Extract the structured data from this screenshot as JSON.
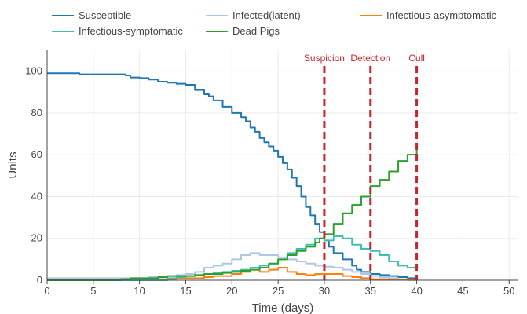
{
  "chart_data": {
    "type": "line",
    "title": "",
    "xlabel": "Time (days)",
    "ylabel": "Units",
    "xlim": [
      0,
      51
    ],
    "ylim": [
      0,
      110
    ],
    "xticks": [
      0,
      5,
      10,
      15,
      20,
      25,
      30,
      35,
      40,
      45,
      50
    ],
    "yticks": [
      0,
      20,
      40,
      60,
      80,
      100
    ],
    "grid": true,
    "legend_position": "top",
    "series": [
      {
        "name": "Susceptible",
        "color": "#1f77b4",
        "x": [
          0,
          3,
          3.5,
          7,
          8.5,
          9,
          10,
          11,
          12,
          13,
          14,
          15,
          16,
          17,
          17.5,
          18,
          19,
          20,
          21,
          21.5,
          22,
          22.5,
          23,
          23.5,
          24,
          24.5,
          25,
          25.5,
          26,
          26.5,
          27,
          27.5,
          28,
          28.5,
          29,
          29.5,
          30,
          30.5,
          31,
          32,
          33,
          33.5,
          34,
          35,
          36,
          37,
          38,
          39,
          40
        ],
        "values": [
          99,
          99,
          98.5,
          98.5,
          98,
          97,
          96.7,
          96,
          95,
          94.5,
          94,
          93.5,
          91,
          89,
          88,
          86,
          83,
          80,
          78,
          76,
          73,
          71,
          68,
          66,
          64,
          62,
          59,
          56,
          53,
          49,
          45,
          40,
          35,
          31,
          27,
          23,
          19,
          16,
          13,
          10,
          7,
          5,
          4,
          3,
          2.5,
          2,
          1.5,
          1,
          0.5
        ]
      },
      {
        "name": "Infected(latent)",
        "color": "#aec7e8",
        "x": [
          0,
          8,
          9,
          10,
          11,
          12,
          13,
          14,
          15,
          16,
          17,
          18,
          19,
          20,
          21,
          22,
          23,
          24,
          25,
          26,
          27,
          28,
          29,
          30,
          31,
          32,
          33,
          34,
          35,
          36,
          37,
          38,
          39,
          40
        ],
        "values": [
          1,
          1,
          1,
          1,
          1.5,
          1.5,
          2,
          2.5,
          3,
          4,
          6,
          7,
          8,
          10,
          12,
          13,
          12,
          12,
          11,
          10,
          9,
          8,
          7,
          6.5,
          6,
          5,
          4,
          3,
          2,
          1.5,
          1,
          0.5,
          0.3,
          0
        ]
      },
      {
        "name": "Infectious-asymptomatic",
        "color": "#ff7f0e",
        "x": [
          0,
          10,
          11,
          12,
          13,
          14,
          15,
          16,
          17,
          18,
          19,
          20,
          21,
          22,
          23,
          24,
          25,
          26,
          27,
          28,
          29,
          30,
          31,
          32,
          33,
          34,
          35,
          36,
          37,
          38,
          39,
          40
        ],
        "values": [
          0,
          0,
          0.3,
          0.5,
          0.5,
          1,
          1,
          1,
          1.5,
          2,
          2,
          3,
          4,
          5,
          4,
          5,
          6,
          4,
          3,
          2.5,
          3,
          3,
          3,
          2,
          1.5,
          1,
          0.5,
          0.5,
          0.3,
          0.2,
          0.1,
          0
        ]
      },
      {
        "name": "Infectious-symptomatic",
        "color": "#40bfae",
        "x": [
          0,
          12,
          13,
          14,
          15,
          16,
          17,
          18,
          19,
          20,
          21,
          22,
          23,
          24,
          25,
          26,
          27,
          28,
          29,
          30,
          31,
          32,
          33,
          34,
          35,
          36,
          37,
          38,
          39,
          40
        ],
        "values": [
          0,
          0,
          1,
          1.5,
          2,
          2.5,
          3,
          3.5,
          4,
          4.5,
          5,
          6,
          7,
          8,
          10,
          13,
          15,
          17,
          20,
          19,
          21,
          20,
          17,
          15,
          14,
          12,
          9,
          7,
          6,
          5
        ]
      },
      {
        "name": "Dead Pigs",
        "color": "#2ca02c",
        "x": [
          0,
          7,
          8,
          9,
          10,
          11,
          12,
          13,
          14,
          15,
          16,
          17,
          18,
          19,
          20,
          21,
          22,
          23,
          24,
          25,
          26,
          27,
          28,
          29,
          29.5,
          30,
          31,
          32,
          33,
          34,
          35,
          36,
          37,
          38,
          39,
          40
        ],
        "values": [
          0,
          0,
          0.5,
          1,
          1,
          1,
          1.5,
          2,
          2,
          2,
          2.5,
          3,
          3,
          3.5,
          4,
          4.5,
          5,
          6,
          8,
          10,
          12,
          14,
          16,
          18,
          20,
          22,
          27,
          32,
          36,
          40,
          45,
          48,
          52,
          57,
          60,
          64
        ]
      }
    ],
    "events": [
      {
        "label": "Suspicion",
        "x": 30,
        "color": "#c1272d"
      },
      {
        "label": "Detection",
        "x": 35,
        "color": "#c1272d"
      },
      {
        "label": "Cull",
        "x": 40,
        "color": "#c1272d"
      }
    ]
  }
}
